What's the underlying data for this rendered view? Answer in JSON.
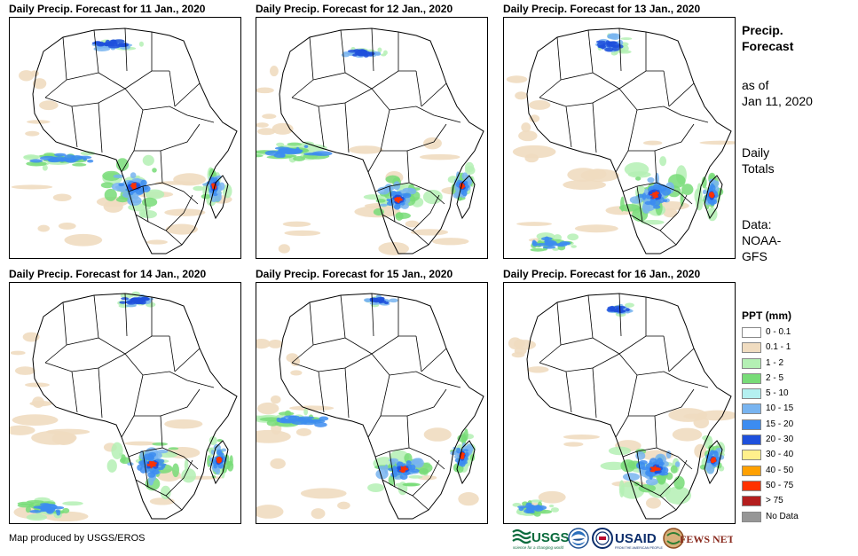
{
  "panels": [
    {
      "title": "Daily Precip. Forecast for 11 Jan., 2020"
    },
    {
      "title": "Daily Precip. Forecast for 12 Jan., 2020"
    },
    {
      "title": "Daily Precip. Forecast for 13 Jan., 2020"
    },
    {
      "title": "Daily Precip. Forecast for 14 Jan., 2020"
    },
    {
      "title": "Daily Precip. Forecast for 15 Jan., 2020"
    },
    {
      "title": "Daily Precip. Forecast for 16 Jan., 2020"
    }
  ],
  "side": {
    "heading_line1": "Precip.",
    "heading_line2": "Forecast",
    "asof_line1": "as of",
    "asof_line2": "Jan 11, 2020",
    "totals_line1": "Daily",
    "totals_line2": "Totals",
    "data_line1": "Data:",
    "data_line2": "NOAA-",
    "data_line3": "GFS"
  },
  "legend": {
    "title": "PPT (mm)",
    "items": [
      {
        "label": "0 - 0.1",
        "color": "#ffffff"
      },
      {
        "label": "0.1 - 1",
        "color": "#f0dcc0"
      },
      {
        "label": "1 - 2",
        "color": "#b4f0b4"
      },
      {
        "label": "2 - 5",
        "color": "#78dc78"
      },
      {
        "label": "5 - 10",
        "color": "#b4f0f0"
      },
      {
        "label": "10 - 15",
        "color": "#78b4f0"
      },
      {
        "label": "15 - 20",
        "color": "#3c8cf0"
      },
      {
        "label": "20 - 30",
        "color": "#1e50dc"
      },
      {
        "label": "30 - 40",
        "color": "#fff08c"
      },
      {
        "label": "40 - 50",
        "color": "#ffa000"
      },
      {
        "label": "50 - 75",
        "color": "#ff3200"
      },
      {
        "label": "> 75",
        "color": "#b41e1e"
      },
      {
        "label": "No Data",
        "color": "#969696"
      }
    ]
  },
  "footer": {
    "credit": "Map produced by USGS/EROS",
    "logo_usgs": "USGS",
    "logo_usgs_tag": "science for a changing world",
    "logo_usaid": "USAID",
    "logo_usaid_tag": "FROM THE AMERICAN PEOPLE",
    "logo_fewsnet": "FEWS NET"
  }
}
